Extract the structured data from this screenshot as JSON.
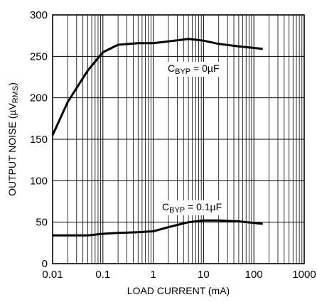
{
  "chart_data": {
    "type": "line",
    "title": "",
    "xlabel": "LOAD CURRENT (mA)",
    "ylabel": {
      "pre": "OUTPUT NOISE (µV",
      "sub": "RMS",
      "post": ")"
    },
    "xscale": "log",
    "xlim": [
      0.01,
      1000
    ],
    "ylim": [
      0,
      300
    ],
    "grid": true,
    "x_ticks": [
      "0.01",
      "0.1",
      "1",
      "10",
      "100",
      "1000"
    ],
    "y_ticks": [
      "0",
      "50",
      "100",
      "150",
      "200",
      "250",
      "300"
    ],
    "series": [
      {
        "name": "CBYP = 0µF",
        "x": [
          0.01,
          0.02,
          0.05,
          0.1,
          0.2,
          0.5,
          1,
          2,
          5,
          10,
          20,
          50,
          150
        ],
        "y": [
          155,
          195,
          233,
          255,
          264,
          266,
          266,
          268,
          271,
          269,
          265,
          262,
          259
        ]
      },
      {
        "name": "CBYP = 0.1µF",
        "x": [
          0.01,
          0.02,
          0.05,
          0.1,
          0.2,
          0.5,
          1,
          2,
          5,
          10,
          20,
          50,
          150
        ],
        "y": [
          34,
          34,
          34,
          36,
          37,
          38,
          39,
          44,
          50,
          52,
          52,
          51,
          48
        ]
      }
    ],
    "annotations": [
      {
        "pre": "C",
        "sub": "BYP",
        "post": " = 0µF"
      },
      {
        "pre": "C",
        "sub": "BYP",
        "post": " = 0.1µF"
      }
    ]
  }
}
